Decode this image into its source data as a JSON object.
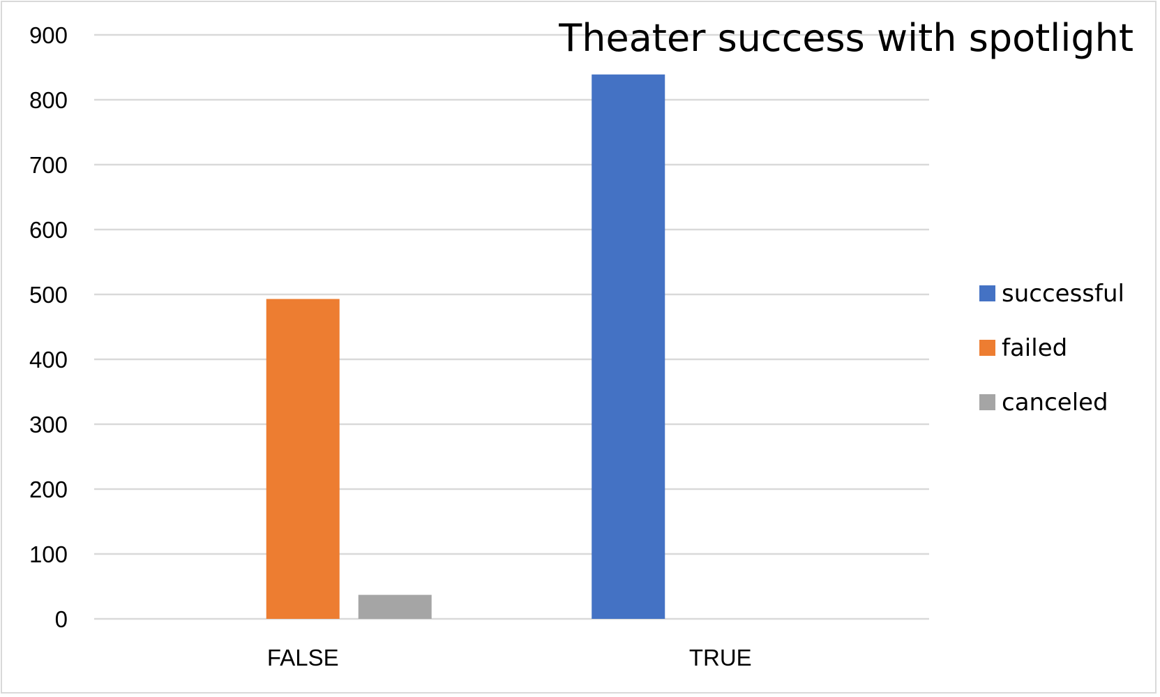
{
  "chart_data": {
    "type": "bar",
    "title": "Theater success with spotlight",
    "xlabel": "",
    "ylabel": "",
    "categories": [
      "FALSE",
      "TRUE"
    ],
    "series": [
      {
        "name": "successful",
        "color": "#4472C4",
        "values": [
          0,
          839
        ]
      },
      {
        "name": "failed",
        "color": "#ED7D31",
        "values": [
          493,
          0
        ]
      },
      {
        "name": "canceled",
        "color": "#A5A5A5",
        "values": [
          37,
          0
        ]
      }
    ],
    "ylim": [
      0,
      900
    ],
    "yticks": [
      0,
      100,
      200,
      300,
      400,
      500,
      600,
      700,
      800,
      900
    ],
    "grid": true,
    "legend_position": "right"
  }
}
